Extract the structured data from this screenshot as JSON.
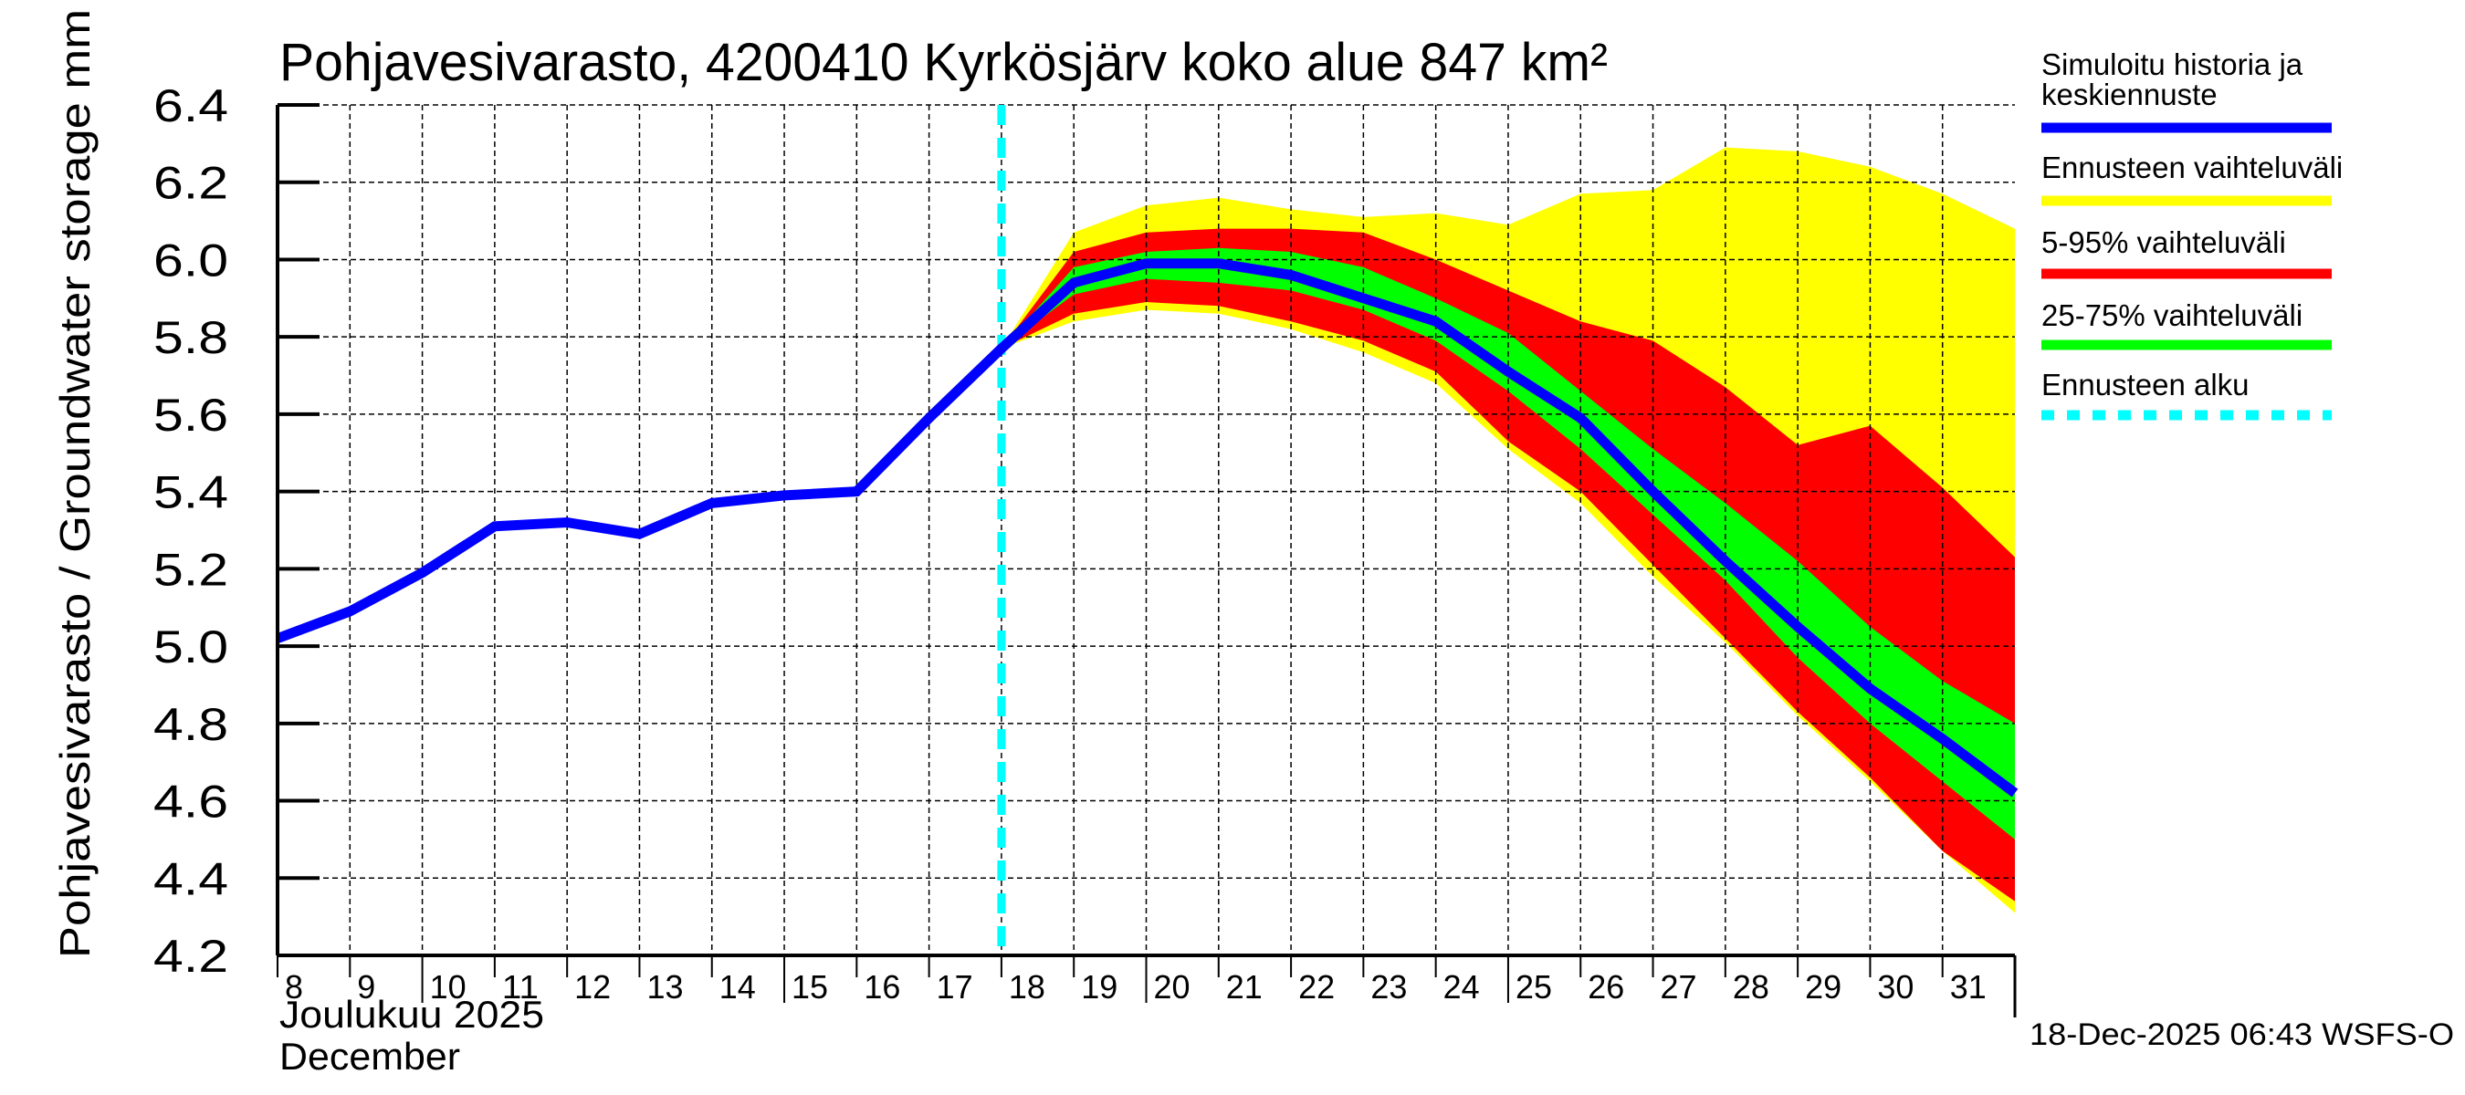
{
  "chart_data": {
    "type": "area",
    "title": "Pohjavesivarasto, 4200410 Kyrkösjärv koko alue 847 km²",
    "ylabel": "Pohjavesivarasto / Groundwater storage   mm",
    "xlabel_line1": "Joulukuu  2025",
    "xlabel_line2": "December",
    "ylim": [
      4.2,
      6.4
    ],
    "xlim": [
      8,
      32
    ],
    "yticks": [
      "4.2",
      "4.4",
      "4.6",
      "4.8",
      "5.0",
      "5.2",
      "5.4",
      "5.6",
      "5.8",
      "6.0",
      "6.2",
      "6.4"
    ],
    "ytick_values": [
      4.2,
      4.4,
      4.6,
      4.8,
      5.0,
      5.2,
      5.4,
      5.6,
      5.8,
      6.0,
      6.2,
      6.4
    ],
    "xticks": [
      "8",
      "9",
      "10",
      "11",
      "12",
      "13",
      "14",
      "15",
      "16",
      "17",
      "18",
      "19",
      "20",
      "21",
      "22",
      "23",
      "24",
      "25",
      "26",
      "27",
      "28",
      "29",
      "30",
      "31"
    ],
    "xtick_values": [
      8,
      9,
      10,
      11,
      12,
      13,
      14,
      15,
      16,
      17,
      18,
      19,
      20,
      21,
      22,
      23,
      24,
      25,
      26,
      27,
      28,
      29,
      30,
      31
    ],
    "major_xticks": [
      10,
      15,
      20,
      25
    ],
    "grid": true,
    "forecast_start": 18,
    "history": {
      "name": "Simuloitu historia ja keskiennuste",
      "x": [
        8,
        9,
        10,
        11,
        12,
        13,
        14,
        15,
        16,
        17,
        18
      ],
      "y": [
        5.02,
        5.09,
        5.19,
        5.31,
        5.32,
        5.29,
        5.37,
        5.39,
        5.4,
        5.59,
        5.77
      ]
    },
    "forecast_x": [
      18,
      19,
      20,
      21,
      22,
      23,
      24,
      25,
      26,
      27,
      28,
      29,
      30,
      31,
      32
    ],
    "median": [
      5.77,
      5.94,
      5.99,
      5.99,
      5.96,
      5.9,
      5.84,
      5.71,
      5.59,
      5.4,
      5.22,
      5.05,
      4.89,
      4.76,
      4.62
    ],
    "range_min_max": {
      "upper": [
        5.77,
        6.07,
        6.14,
        6.16,
        6.13,
        6.11,
        6.12,
        6.09,
        6.17,
        6.18,
        6.29,
        6.28,
        6.24,
        6.17,
        6.08
      ],
      "lower": [
        5.77,
        5.84,
        5.87,
        5.86,
        5.82,
        5.76,
        5.68,
        5.51,
        5.37,
        5.18,
        5.01,
        4.82,
        4.65,
        4.47,
        4.31
      ]
    },
    "range_5_95": {
      "upper": [
        5.77,
        6.02,
        6.07,
        6.08,
        6.08,
        6.07,
        6.0,
        5.92,
        5.84,
        5.79,
        5.67,
        5.52,
        5.57,
        5.41,
        5.23
      ],
      "lower": [
        5.77,
        5.86,
        5.89,
        5.88,
        5.84,
        5.79,
        5.71,
        5.53,
        5.4,
        5.21,
        5.02,
        4.83,
        4.66,
        4.47,
        4.34
      ]
    },
    "range_25_75": {
      "upper": [
        5.77,
        5.98,
        6.02,
        6.03,
        6.02,
        5.98,
        5.9,
        5.81,
        5.66,
        5.51,
        5.37,
        5.22,
        5.05,
        4.91,
        4.8
      ],
      "lower": [
        5.77,
        5.91,
        5.95,
        5.94,
        5.92,
        5.87,
        5.79,
        5.66,
        5.51,
        5.34,
        5.17,
        4.97,
        4.8,
        4.65,
        4.5
      ]
    },
    "colors": {
      "median": "#0000ff",
      "range_min_max": "#ffff00",
      "range_5_95": "#ff0000",
      "range_25_75": "#00ff00",
      "forecast_start": "#00ffff",
      "grid": "#000000"
    },
    "legend": {
      "placement": "right",
      "items": [
        {
          "label_line1": "Simuloitu historia ja",
          "label_line2": "keskiennuste",
          "color": "#0000ff",
          "style": "solid"
        },
        {
          "label_line1": "Ennusteen vaihteluväli",
          "label_line2": "",
          "color": "#ffff00",
          "style": "solid"
        },
        {
          "label_line1": "5-95% vaihteluväli",
          "label_line2": "",
          "color": "#ff0000",
          "style": "solid"
        },
        {
          "label_line1": "25-75% vaihteluväli",
          "label_line2": "",
          "color": "#00ff00",
          "style": "solid"
        },
        {
          "label_line1": "Ennusteen alku",
          "label_line2": "",
          "color": "#00ffff",
          "style": "dashed"
        }
      ]
    },
    "footer": "18-Dec-2025 06:43 WSFS-O"
  }
}
